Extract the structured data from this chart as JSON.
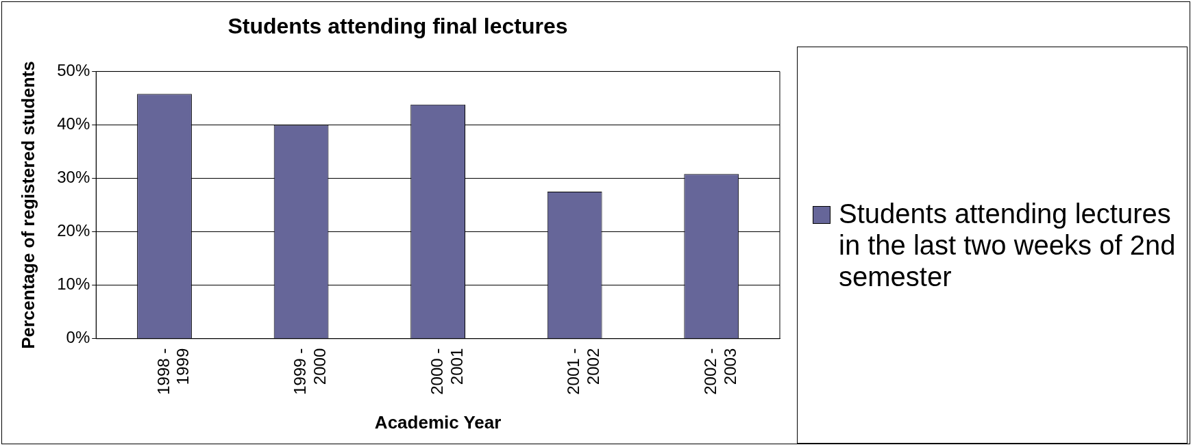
{
  "chart_data": {
    "type": "bar",
    "title": "Students attending final lectures",
    "xlabel": "Academic Year",
    "ylabel": "Percentage of registered students",
    "categories": [
      "1998 - 1999",
      "1999 - 2000",
      "2000 - 2001",
      "2001 - 2002",
      "2002 - 2003"
    ],
    "series": [
      {
        "name": "Students attending lectures in the last two weeks of 2nd semester",
        "color": "#666699",
        "values": [
          45.8,
          40,
          43.8,
          27.5,
          30.8
        ]
      }
    ],
    "ylim": [
      0,
      50
    ],
    "yticks": [
      {
        "value": 0,
        "label": "0%"
      },
      {
        "value": 10,
        "label": "10%"
      },
      {
        "value": 20,
        "label": "20%"
      },
      {
        "value": 30,
        "label": "30%"
      },
      {
        "value": 40,
        "label": "40%"
      },
      {
        "value": 50,
        "label": "50%"
      }
    ],
    "grid": "y",
    "legend": "right"
  }
}
